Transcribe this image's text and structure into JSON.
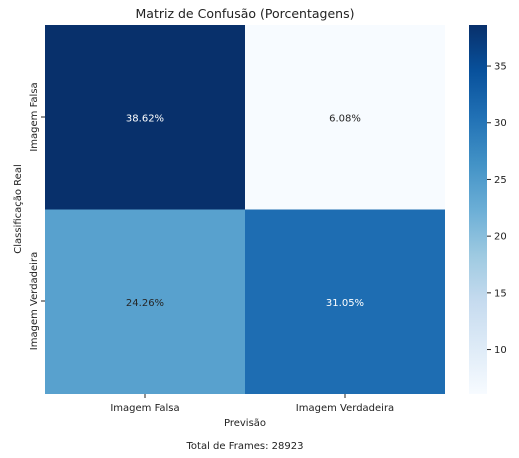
{
  "chart_data": {
    "type": "heatmap",
    "title": "Matriz de Confusão (Porcentagens)",
    "xlabel": "Previsão",
    "ylabel": "Classificação Real",
    "x_categories": [
      "Imagem Falsa",
      "Imagem Verdadeira"
    ],
    "y_categories": [
      "Imagem Falsa",
      "Imagem Verdadeira"
    ],
    "values": [
      [
        38.62,
        6.08
      ],
      [
        24.26,
        31.05
      ]
    ],
    "cell_labels": [
      [
        "38.62%",
        "6.08%"
      ],
      [
        "24.26%",
        "31.05%"
      ]
    ],
    "colormap": "Blues",
    "colorbar": {
      "range": [
        6.08,
        38.62
      ],
      "ticks": [
        10,
        15,
        20,
        25,
        30,
        35
      ]
    },
    "footnote": "Total de Frames: 28923"
  }
}
